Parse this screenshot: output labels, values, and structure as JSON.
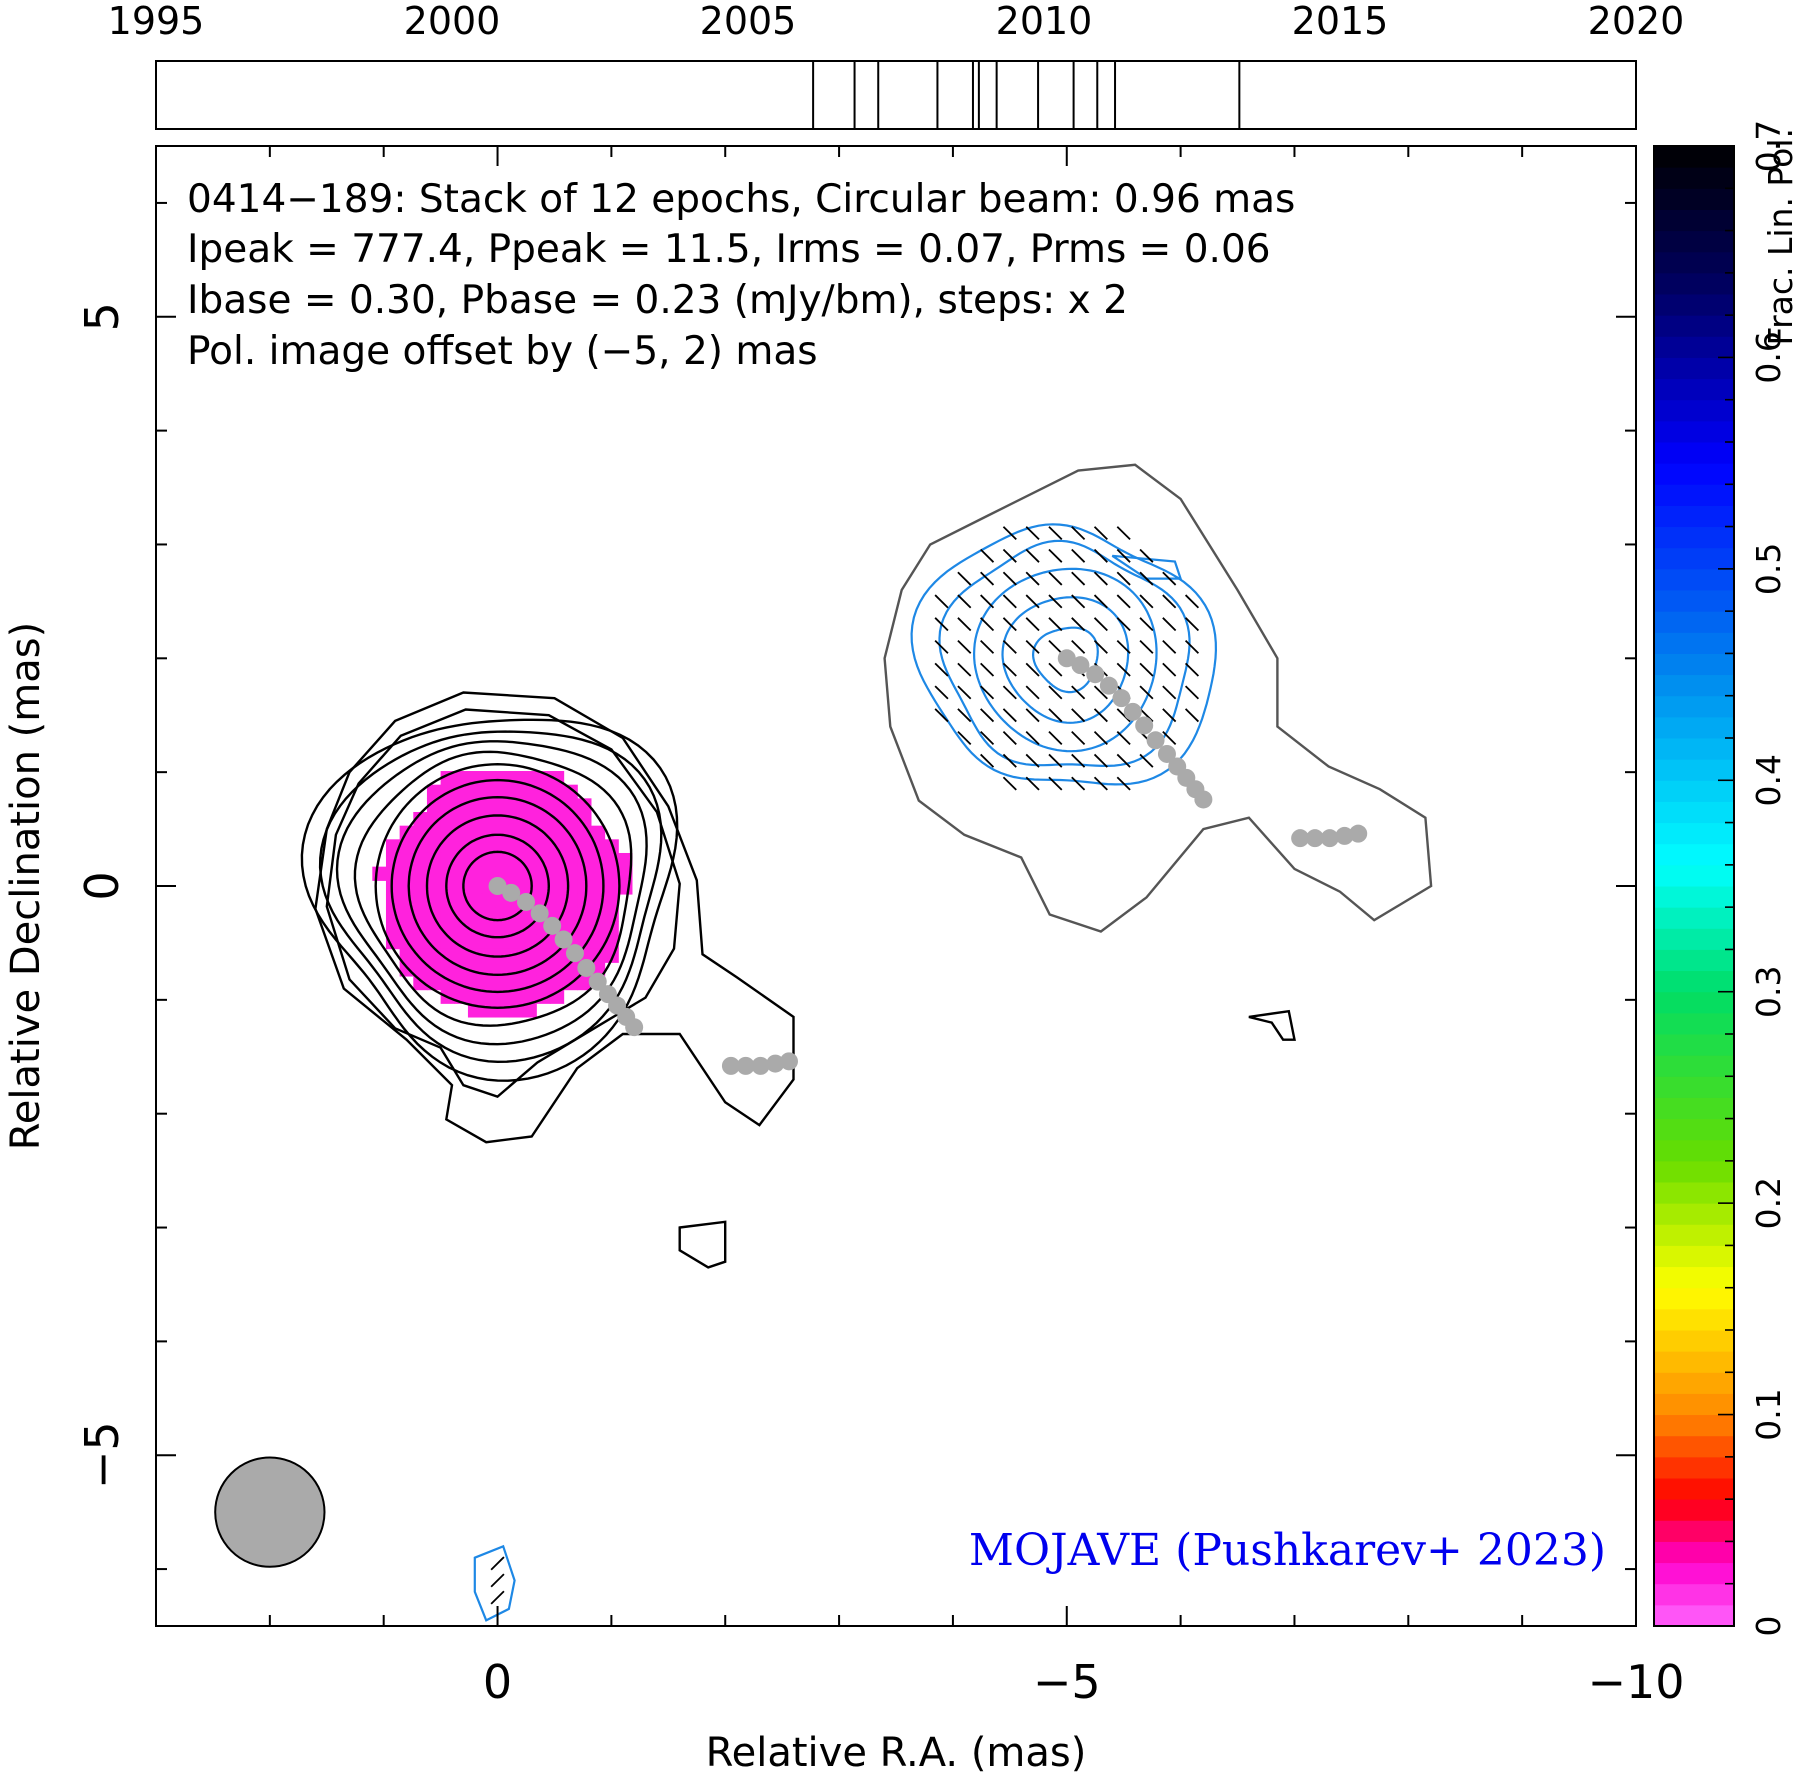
{
  "chart_data": {
    "type": "contour",
    "timeline": {
      "tick_labels": [
        "1995",
        "2000",
        "2005",
        "2010",
        "2015",
        "2020"
      ],
      "range": [
        1995,
        2020
      ],
      "epochs": [
        2006.1,
        2006.8,
        2007.2,
        2008.2,
        2008.8,
        2008.9,
        2009.2,
        2009.9,
        2010.5,
        2010.9,
        2011.2,
        2013.3
      ]
    },
    "annotation": {
      "line1": "0414−189: Stack of 12 epochs, Circular beam: 0.96 mas",
      "line2": "Ipeak = 777.4, Ppeak = 11.5, Irms = 0.07, Prms = 0.06",
      "line3": "Ibase = 0.30, Pbase = 0.23 (mJy/bm), steps: x 2",
      "pol_offset": "Pol. image offset by (−5, 2) mas",
      "pol_offset_color": "#1e88e5",
      "credit": "MOJAVE (Pushkarev+ 2023)",
      "credit_color": "#0000ee"
    },
    "xlabel": "Relative R.A. (mas)",
    "ylabel": "Relative Declination (mas)",
    "xlim": [
      3,
      -10
    ],
    "ylim": [
      -6.5,
      6.5
    ],
    "xtick_labels": [
      "0",
      "−5",
      "−10"
    ],
    "ytick_labels": [
      "5",
      "0",
      "−5"
    ],
    "beam": {
      "center": [
        2,
        -5.5
      ],
      "diameter_mas": 0.96,
      "color": "#aaaaaa"
    },
    "stokes_i_contours": {
      "core_center": [
        0,
        0
      ],
      "core_radii_mas": [
        0.3,
        0.45,
        0.62,
        0.78,
        0.93,
        1.07,
        1.2,
        1.33,
        1.45,
        1.58
      ],
      "color": "#000000"
    },
    "jet_ridge_line": {
      "color": "#aaaaaa",
      "points": [
        [
          0,
          0
        ],
        [
          -0.12,
          -0.06
        ],
        [
          -0.25,
          -0.14
        ],
        [
          -0.37,
          -0.24
        ],
        [
          -0.48,
          -0.35
        ],
        [
          -0.58,
          -0.47
        ],
        [
          -0.68,
          -0.59
        ],
        [
          -0.78,
          -0.72
        ],
        [
          -0.88,
          -0.84
        ],
        [
          -0.97,
          -0.95
        ],
        [
          -1.05,
          -1.05
        ],
        [
          -1.13,
          -1.15
        ],
        [
          -1.2,
          -1.24
        ],
        [
          -2.05,
          -1.58
        ],
        [
          -2.18,
          -1.58
        ],
        [
          -2.31,
          -1.58
        ],
        [
          -2.44,
          -1.56
        ],
        [
          -2.56,
          -1.54
        ]
      ]
    },
    "pol_contours": {
      "color": "#1e88e5",
      "center": [
        -5,
        2
      ],
      "radii_mas": [
        0.28,
        0.55,
        0.8,
        1.03,
        1.22
      ]
    },
    "colorbar": {
      "label": "Frac. Lin. Pol.",
      "range": [
        0,
        0.7
      ],
      "tick_labels": [
        "0",
        "0.1",
        "0.2",
        "0.3",
        "0.4",
        "0.5",
        "0.6",
        "0.7"
      ],
      "core_frac_pol": 0.02
    }
  }
}
